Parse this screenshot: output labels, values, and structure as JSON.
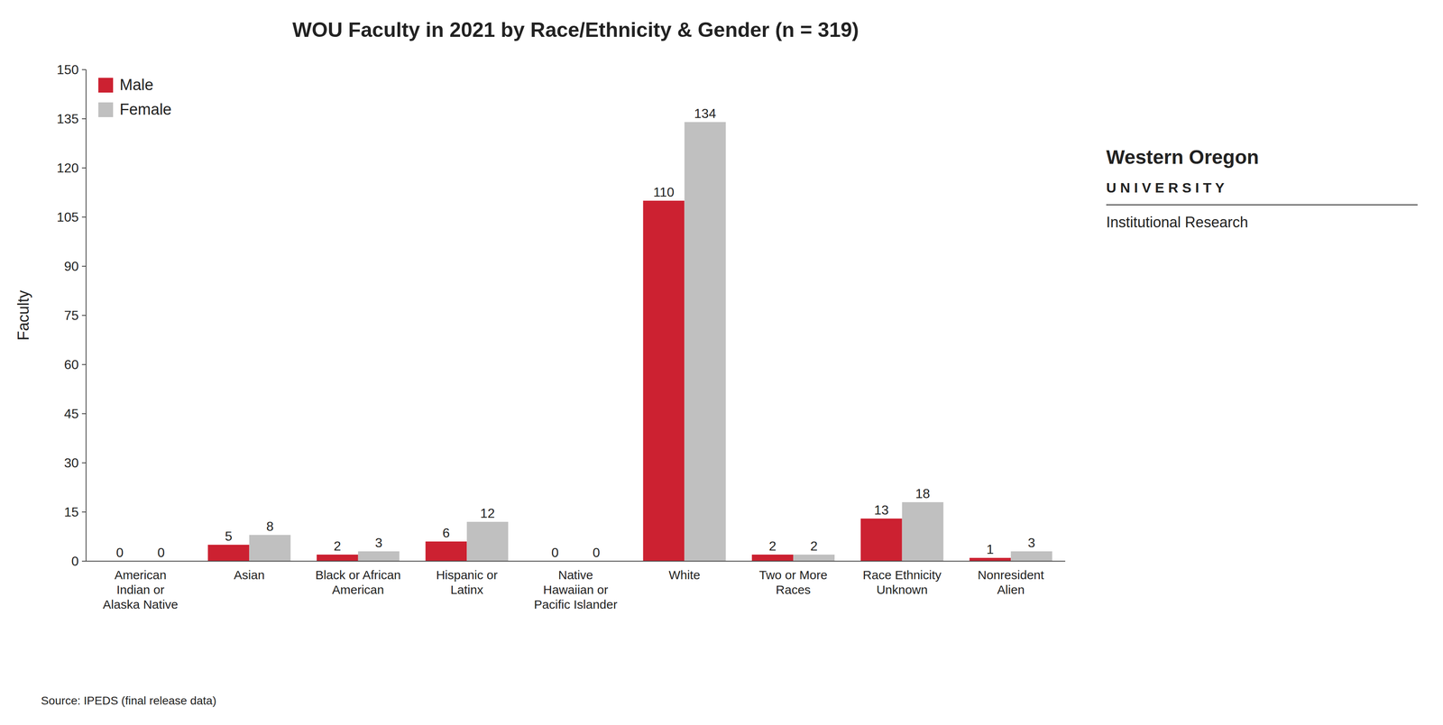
{
  "chart_data": {
    "type": "bar",
    "title": "WOU Faculty in 2021 by Race/Ethnicity & Gender (n = 319)",
    "ylabel": "Faculty",
    "annotations": [
      "Source: IPEDS (final release data)",
      "Western Oregon",
      "U N I V E R S I T Y",
      "Institutional Research"
    ],
    "categories": [
      "American\nIndian or\nAlaska Native",
      "Asian",
      "Black or African\nAmerican",
      "Hispanic or\nLatinx",
      "Native\nHawaiian or\nPacific Islander",
      "White",
      "Two or More\nRaces",
      "Race Ethnicity\nUnknown",
      "Nonresident\nAlien"
    ],
    "series": [
      {
        "name": "Male",
        "color": "#cc2131",
        "values": [
          0,
          5,
          2,
          6,
          0,
          110,
          2,
          13,
          1
        ]
      },
      {
        "name": "Female",
        "color": "#c0c0c0",
        "values": [
          0,
          8,
          3,
          12,
          0,
          134,
          2,
          18,
          3
        ]
      }
    ],
    "ylim": [
      0,
      150
    ],
    "yticks": [
      0,
      15,
      30,
      45,
      60,
      75,
      90,
      105,
      120,
      135,
      150
    ],
    "grid": false,
    "legend": "upper left",
    "data_labels": true
  }
}
